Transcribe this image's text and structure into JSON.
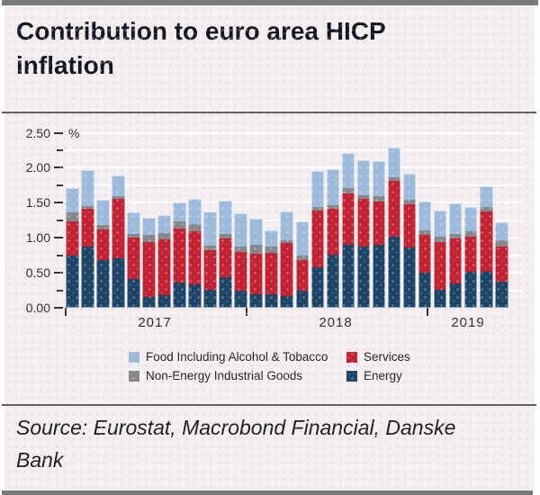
{
  "page": {
    "title": "Contribution to euro area HICP\ninflation"
  },
  "source": {
    "text": "Source: Eurostat, Macrobond Financial, Danske\nBank"
  },
  "chart_data": {
    "type": "bar",
    "subtype": "stacked-monthly",
    "title": "Contribution to euro area HICP inflation",
    "unit": "%",
    "ylabel": "%",
    "ylim": [
      0,
      2.5
    ],
    "grid": true,
    "y_ticks": [
      "2.50",
      "2.00",
      "1.50",
      "1.00",
      "0.50",
      "0.00"
    ],
    "x_year_labels": [
      "2017",
      "2018",
      "2019"
    ],
    "x": [
      "Jan 2017",
      "Feb 2017",
      "Mar 2017",
      "Apr 2017",
      "May 2017",
      "Jun 2017",
      "Jul 2017",
      "Aug 2017",
      "Sep 2017",
      "Oct 2017",
      "Nov 2017",
      "Dec 2017",
      "Jan 2018",
      "Feb 2018",
      "Mar 2018",
      "Apr 2018",
      "May 2018",
      "Jun 2018",
      "Jul 2018",
      "Aug 2018",
      "Sep 2018",
      "Oct 2018",
      "Nov 2018",
      "Dec 2018",
      "Jan 2019",
      "Feb 2019",
      "Mar 2019",
      "Apr 2019",
      "May 2019"
    ],
    "stack_order_bottom_to_top": [
      "Energy",
      "Services",
      "Non-Energy Industrial Goods",
      "Food Including Alcohol & Tobacco"
    ],
    "series": [
      {
        "name": "Energy",
        "color": "#1d4567",
        "values": [
          0.74,
          0.87,
          0.68,
          0.71,
          0.41,
          0.16,
          0.18,
          0.36,
          0.34,
          0.26,
          0.44,
          0.25,
          0.19,
          0.19,
          0.17,
          0.24,
          0.58,
          0.76,
          0.9,
          0.88,
          0.9,
          1.02,
          0.86,
          0.5,
          0.26,
          0.35,
          0.52,
          0.51,
          0.37
        ]
      },
      {
        "name": "Services",
        "color": "#c22231",
        "values": [
          0.49,
          0.54,
          0.44,
          0.84,
          0.59,
          0.78,
          0.8,
          0.77,
          0.75,
          0.56,
          0.55,
          0.55,
          0.58,
          0.59,
          0.75,
          0.44,
          0.81,
          0.65,
          0.73,
          0.68,
          0.62,
          0.79,
          0.62,
          0.54,
          0.68,
          0.64,
          0.5,
          0.87,
          0.5
        ]
      },
      {
        "name": "Non-Energy Industrial Goods",
        "color": "#85888b",
        "values": [
          0.13,
          0.04,
          0.06,
          0.05,
          0.06,
          0.1,
          0.09,
          0.1,
          0.11,
          0.07,
          0.06,
          0.07,
          0.13,
          0.1,
          0.05,
          0.07,
          0.05,
          0.06,
          0.08,
          0.05,
          0.07,
          0.05,
          0.06,
          0.07,
          0.08,
          0.07,
          0.07,
          0.06,
          0.09
        ]
      },
      {
        "name": "Food Including Alcohol & Tobacco",
        "color": "#9cbbdc",
        "values": [
          0.35,
          0.52,
          0.36,
          0.29,
          0.3,
          0.24,
          0.25,
          0.28,
          0.35,
          0.48,
          0.48,
          0.48,
          0.37,
          0.22,
          0.41,
          0.48,
          0.52,
          0.51,
          0.5,
          0.5,
          0.51,
          0.43,
          0.38,
          0.41,
          0.37,
          0.43,
          0.35,
          0.3,
          0.26
        ]
      }
    ],
    "legend": [
      {
        "label": "Food Including Alcohol & Tobacco",
        "color": "#9cbbdc"
      },
      {
        "label": "Services",
        "color": "#c22231"
      },
      {
        "label": "Non-Energy Industrial Goods",
        "color": "#85888b"
      },
      {
        "label": "Energy",
        "color": "#1d4567"
      }
    ],
    "legend_position": "bottom"
  }
}
